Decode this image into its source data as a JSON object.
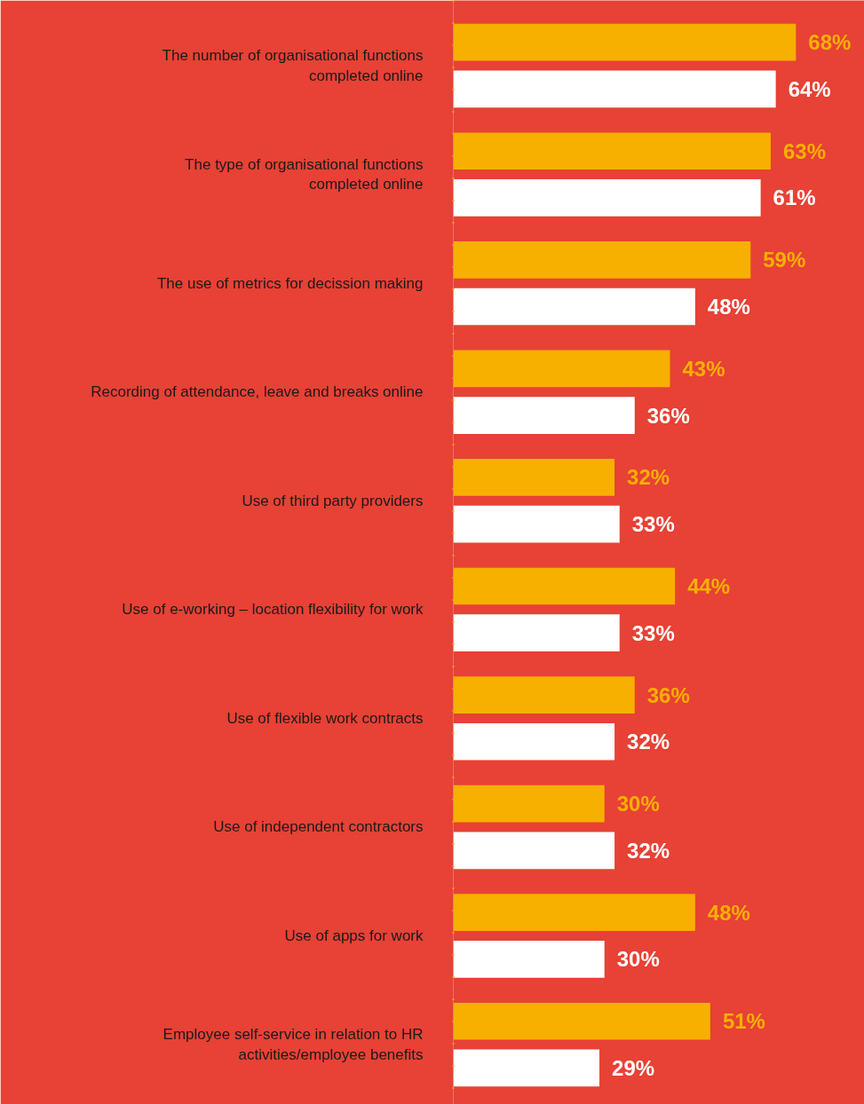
{
  "chart_data": {
    "type": "bar",
    "orientation": "horizontal",
    "categories": [
      "The number of organisational functions completed online",
      "The type of organisational functions completed online",
      "The use of metrics for decission making",
      "Recording of attendance, leave and breaks online",
      "Use of third party providers",
      "Use of e-working – location flexibility for work",
      "Use of flexible work contracts",
      "Use of independent contractors",
      "Use of apps for work",
      "Employee self-service in relation to HR activities/employee benefits"
    ],
    "series": [
      {
        "color": "#f7b000",
        "values": [
          68,
          63,
          59,
          43,
          32,
          44,
          36,
          30,
          48,
          51
        ],
        "value_labels": [
          "68%",
          "63%",
          "59%",
          "43%",
          "32%",
          "44%",
          "36%",
          "30%",
          "48%",
          "51%"
        ]
      },
      {
        "color": "#ffffff",
        "values": [
          64,
          61,
          48,
          36,
          33,
          33,
          32,
          32,
          30,
          29
        ],
        "value_labels": [
          "64%",
          "61%",
          "48%",
          "36%",
          "33%",
          "33%",
          "32%",
          "32%",
          "30%",
          "29%"
        ]
      }
    ]
  }
}
